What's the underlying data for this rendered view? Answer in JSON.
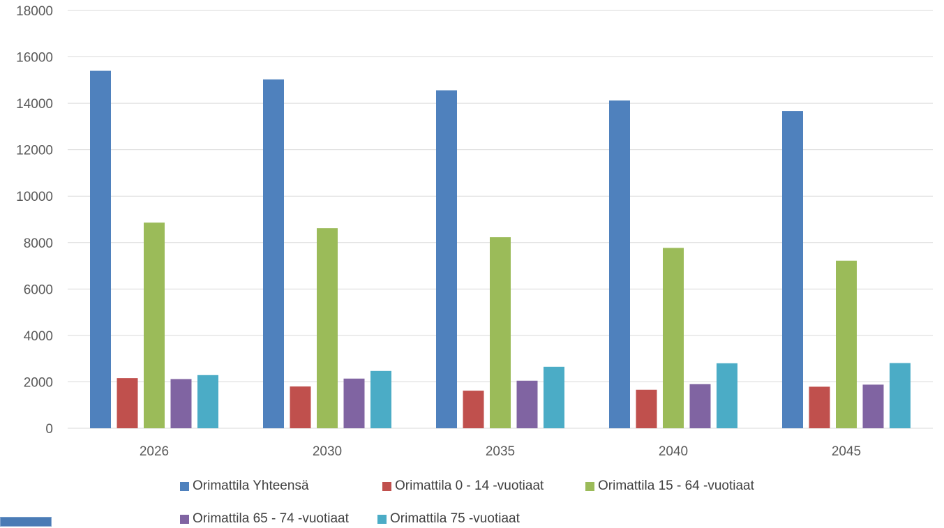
{
  "chart_data": {
    "type": "bar",
    "categories": [
      "2026",
      "2030",
      "2035",
      "2040",
      "2045"
    ],
    "series": [
      {
        "name": "Orimattila Yhteensä",
        "color": "#4f81bd",
        "values": [
          15400,
          15030,
          14560,
          14120,
          13670
        ]
      },
      {
        "name": "Orimattila 0 - 14 -vuotiaat",
        "color": "#c0504d",
        "values": [
          2160,
          1800,
          1620,
          1660,
          1790
        ]
      },
      {
        "name": "Orimattila 15 - 64 -vuotiaat",
        "color": "#9bbb59",
        "values": [
          8860,
          8620,
          8230,
          7770,
          7220
        ]
      },
      {
        "name": "Orimattila 65 - 74 -vuotiaat",
        "color": "#8064a2",
        "values": [
          2120,
          2140,
          2050,
          1900,
          1880
        ]
      },
      {
        "name": "Orimattila 75 -vuotiaat",
        "color": "#4bacc6",
        "values": [
          2290,
          2470,
          2650,
          2800,
          2810
        ]
      }
    ],
    "ylim": [
      0,
      18000
    ],
    "yticks": [
      "0",
      "2000",
      "4000",
      "6000",
      "8000",
      "10000",
      "12000",
      "14000",
      "16000",
      "18000"
    ],
    "grid": true,
    "legend": "bottom"
  }
}
